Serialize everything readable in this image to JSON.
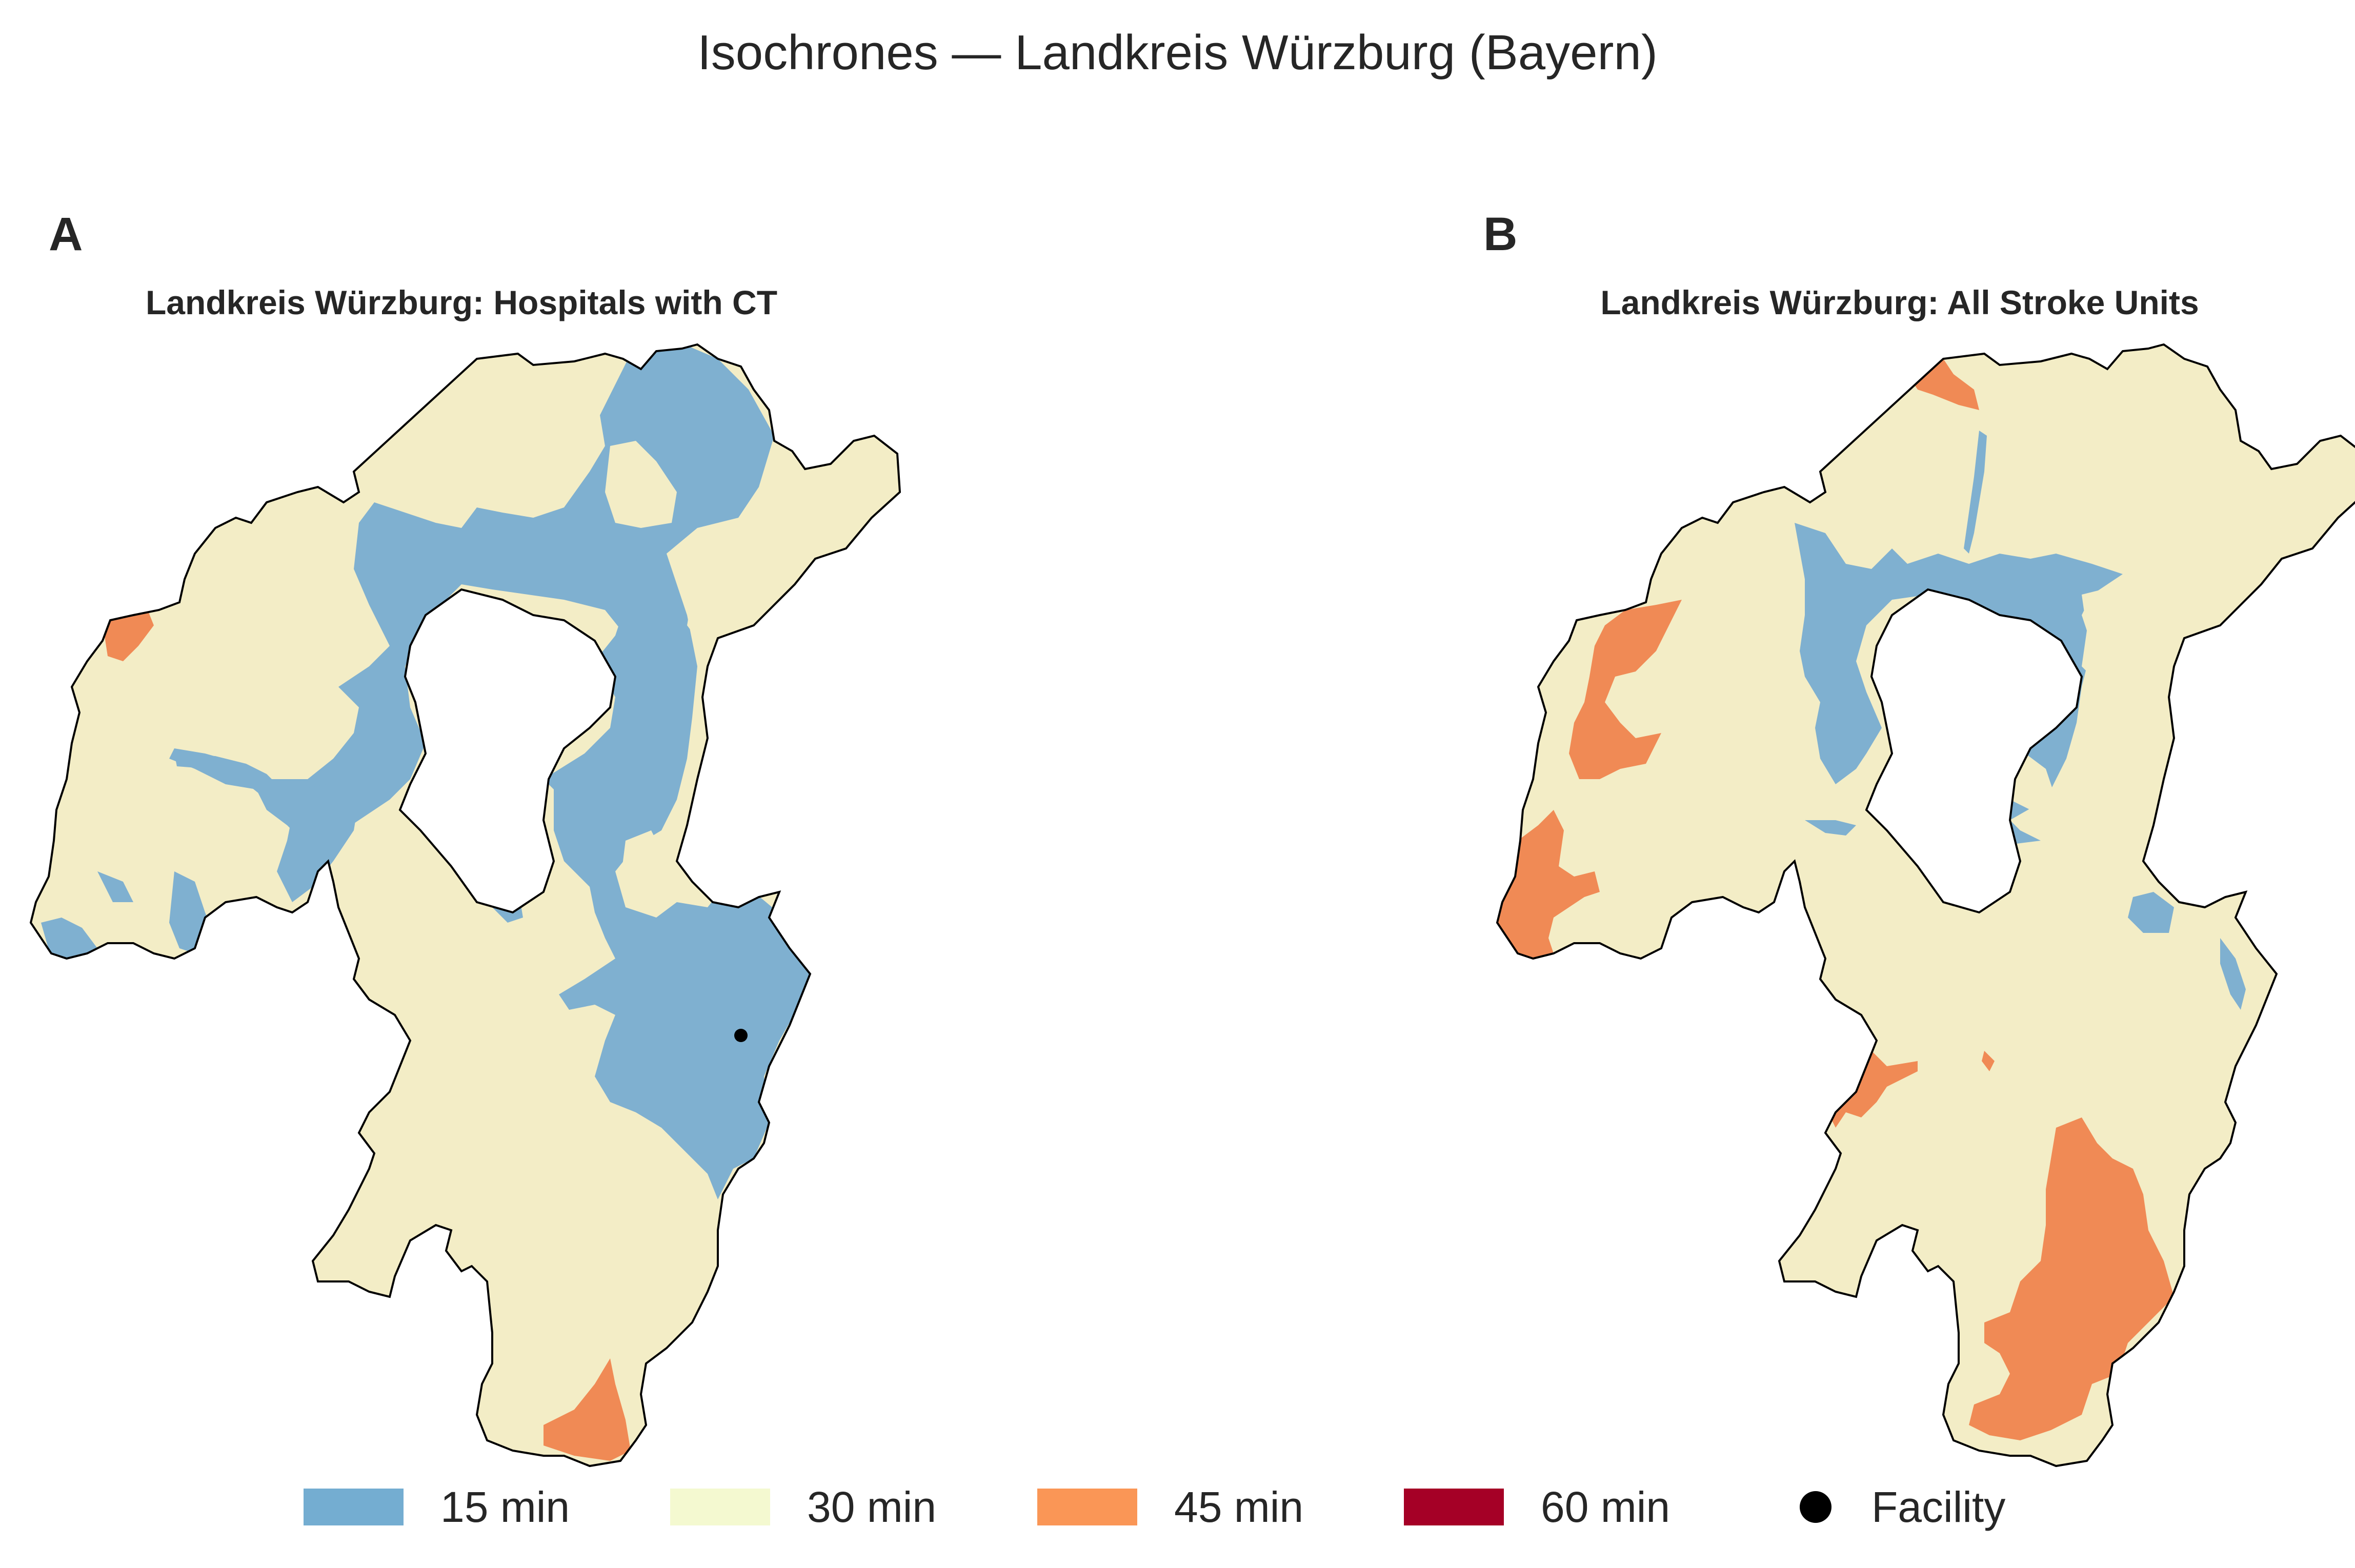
{
  "title": "Isochrones — Landkreis Würzburg (Bayern)",
  "colors": {
    "min15": "#7fb0d0",
    "min30": "#f3edc6",
    "min45": "#f08a55",
    "min60": "#a50026",
    "facility": "#000000",
    "outline": "#000000"
  },
  "panels": [
    {
      "letter": "A",
      "title": "Landkreis Würzburg: Hospitals with CT",
      "facilities_shown": 1
    },
    {
      "letter": "B",
      "title": "Landkreis Würzburg: All Stroke Units",
      "facilities_shown": 0
    }
  ],
  "legend": [
    {
      "label": "15 min",
      "color": "#74add1",
      "type": "patch"
    },
    {
      "label": "30 min",
      "color": "#f4f9d0",
      "type": "patch"
    },
    {
      "label": "45 min",
      "color": "#fa9656",
      "type": "patch"
    },
    {
      "label": "60 min",
      "color": "#a50026",
      "type": "patch"
    },
    {
      "label": "Facility",
      "color": "#000000",
      "type": "marker"
    }
  ]
}
